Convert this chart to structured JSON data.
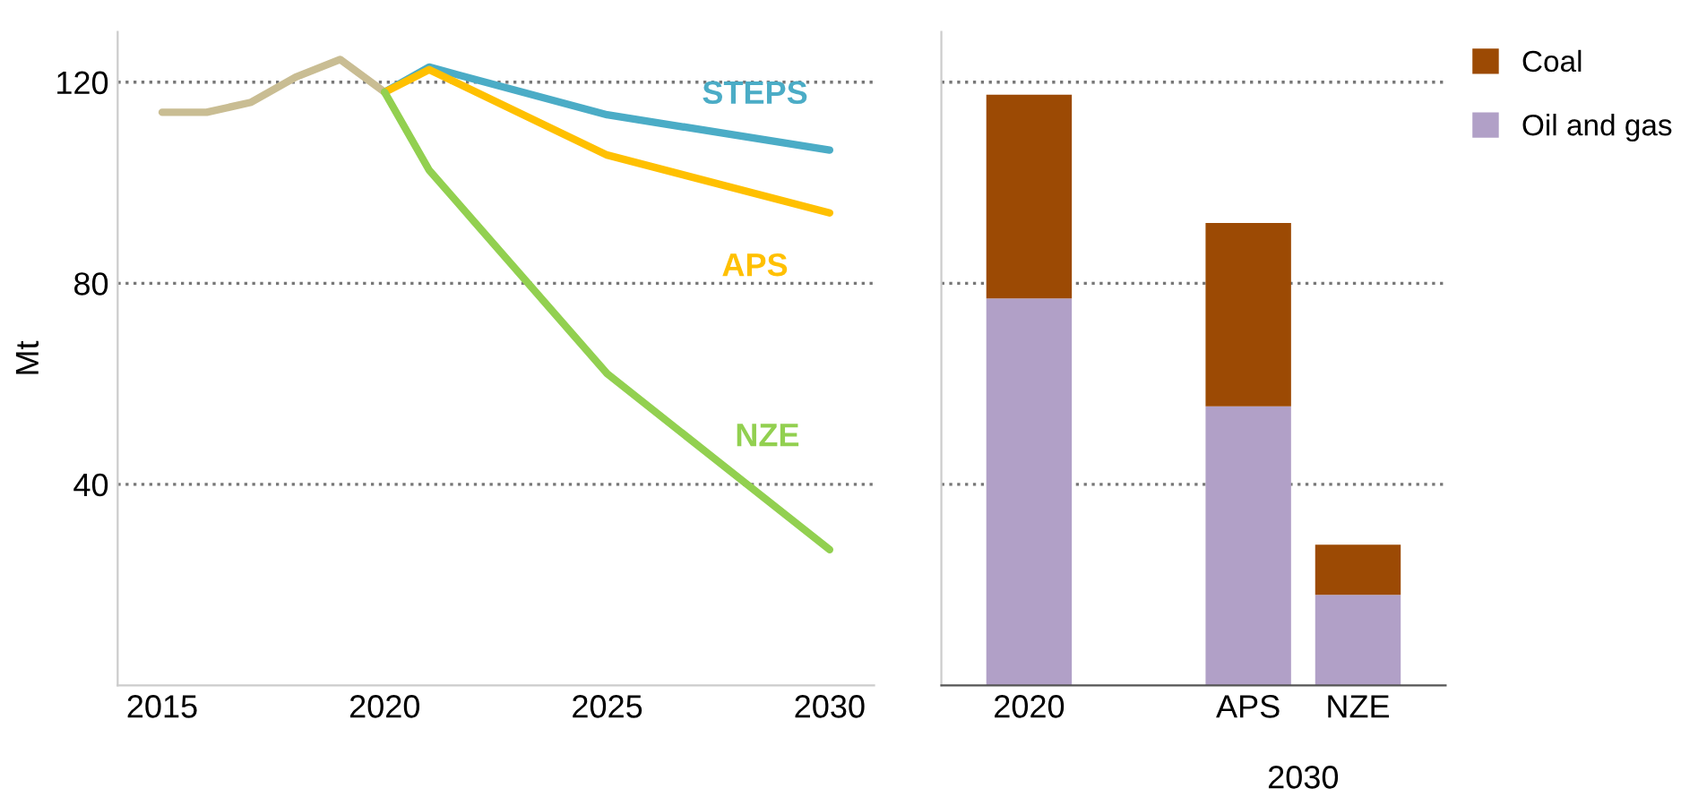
{
  "chart_data": [
    {
      "type": "line",
      "ylabel": "Mt",
      "xlim": [
        2014,
        2031
      ],
      "xticks": [
        2015,
        2020,
        2025,
        2030
      ],
      "ylim": [
        0,
        130
      ],
      "yticks": [
        40,
        80,
        120
      ],
      "grid": "y",
      "marker": "none",
      "line_style": "solid",
      "series": [
        {
          "color": "#c9bd93",
          "x": [
            2015,
            2016,
            2017,
            2018,
            2019,
            2020
          ],
          "values": [
            114,
            114,
            116,
            121,
            124.5,
            118
          ]
        },
        {
          "name": "STEPS",
          "color": "#4bacc6",
          "x": [
            2020,
            2021,
            2025,
            2030
          ],
          "values": [
            118,
            123,
            113.5,
            106.5
          ]
        },
        {
          "name": "APS",
          "color": "#ffc000",
          "x": [
            2020,
            2021,
            2025,
            2030
          ],
          "values": [
            118,
            122.5,
            105.5,
            94
          ]
        },
        {
          "name": "NZE",
          "color": "#92d050",
          "x": [
            2020,
            2021,
            2025,
            2030
          ],
          "values": [
            118,
            102.5,
            62,
            27
          ]
        }
      ]
    },
    {
      "type": "bar",
      "stacked": true,
      "categories": [
        "2020",
        null,
        "APS",
        "NZE"
      ],
      "ylim": [
        0,
        130
      ],
      "yticks": [
        40,
        80,
        120
      ],
      "grid": "y",
      "tick_labels": "x",
      "legend": "right",
      "annotations": [
        "2030"
      ],
      "series": [
        {
          "name": "Oil and gas",
          "color": "#b1a0c7",
          "values": [
            77,
            null,
            55.5,
            18
          ]
        },
        {
          "name": "Coal",
          "color": "#9c4a04",
          "values": [
            40.5,
            null,
            36.5,
            10
          ]
        }
      ]
    }
  ]
}
